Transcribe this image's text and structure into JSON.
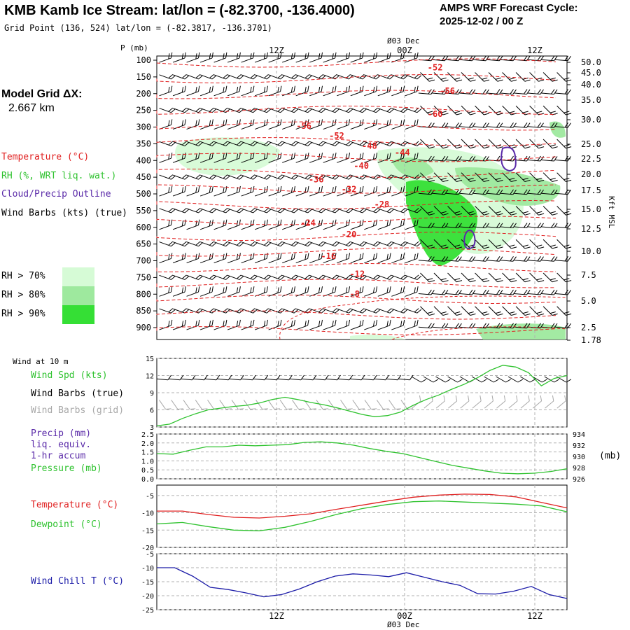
{
  "header": {
    "title": "KMB Kamb Ice Stream:  lat/lon = (-82.3700, -136.4000)",
    "grid_point": "Grid Point (136, 524) lat/lon = (-82.3817, -136.3701)",
    "cycle_label": "AMPS WRF Forecast Cycle:",
    "cycle_value": "2025-12-02 / 00  Z"
  },
  "left_panel": {
    "grid_dx_label": "Model Grid ΔX:",
    "grid_dx_value": "2.667 km",
    "legend": {
      "temperature": "Temperature (°C)",
      "rh": "RH (%, WRT liq. wat.)",
      "cloud": "Cloud/Precip Outline",
      "wind": "Wind Barbs (kts) (true)"
    },
    "rh_levels": [
      {
        "label": "RH > 70%",
        "color": "#d6fbd6"
      },
      {
        "label": "RH > 80%",
        "color": "#9ee99e"
      },
      {
        "label": "RH > 90%",
        "color": "#35df35"
      }
    ]
  },
  "colors": {
    "temperature": "#e02020",
    "rh_line": "#2ec22e",
    "cloud_outline": "#5a2aa8",
    "wind_chill": "#1c1ca8",
    "grid_barbs": "#a8a8a8",
    "gridline": "#b0b0b0"
  },
  "time_axis": {
    "top_date": "Ø03 Dec",
    "bottom_date": "Ø03 Dec",
    "ticks": [
      "12Z",
      "00Z",
      "12Z"
    ]
  },
  "chart_data": [
    {
      "type": "line",
      "panel": "upper-air cross section",
      "ylabel": "P (mb)",
      "y_ticks": [
        100,
        150,
        200,
        250,
        300,
        350,
        400,
        450,
        500,
        550,
        600,
        650,
        700,
        750,
        800,
        850,
        900
      ],
      "right_axis_label": "Kft MSL",
      "right_ticks": [
        "50.0",
        "45.0",
        "40.0",
        "35.0",
        "30.0",
        "25.0",
        "22.5",
        "20.0",
        "17.5",
        "15.0",
        "12.5",
        "10.0",
        "7.5",
        "5.0",
        "2.5",
        "1.78"
      ],
      "temperature_labels": [
        {
          "text": "-52",
          "t": 0.66,
          "p": 130
        },
        {
          "text": "-56",
          "t": 0.69,
          "p": 200
        },
        {
          "text": "-60",
          "t": 0.66,
          "p": 270
        },
        {
          "text": "-56",
          "t": 0.34,
          "p": 305
        },
        {
          "text": "-52",
          "t": 0.42,
          "p": 335
        },
        {
          "text": "-48",
          "t": 0.5,
          "p": 365
        },
        {
          "text": "-44",
          "t": 0.58,
          "p": 385
        },
        {
          "text": "-40",
          "t": 0.48,
          "p": 425
        },
        {
          "text": "-36",
          "t": 0.37,
          "p": 465
        },
        {
          "text": "-32",
          "t": 0.45,
          "p": 495
        },
        {
          "text": "-28",
          "t": 0.53,
          "p": 540
        },
        {
          "text": "-24",
          "t": 0.35,
          "p": 595
        },
        {
          "text": "-20",
          "t": 0.45,
          "p": 630
        },
        {
          "text": "-16",
          "t": 0.4,
          "p": 695
        },
        {
          "text": "-12",
          "t": 0.47,
          "p": 748
        },
        {
          "text": "-8",
          "t": 0.47,
          "p": 808
        }
      ]
    },
    {
      "type": "line",
      "panel": "wind",
      "section_label": "Wind at 10 m",
      "legend": [
        "Wind Spd (kts)",
        "Wind Barbs (true)",
        "Wind Barbs (grid)"
      ],
      "y_ticks": [
        3,
        6,
        9,
        12,
        15
      ],
      "ylim": [
        3,
        15
      ],
      "series": [
        {
          "name": "Wind Spd (kts)",
          "color": "#2ec22e",
          "values": [
            3.2,
            3.5,
            4.5,
            5.3,
            6,
            6.3,
            6.6,
            6.8,
            7.2,
            7.8,
            8.2,
            7.8,
            7.3,
            6.9,
            6.4,
            5.8,
            5.2,
            4.8,
            5,
            5.6,
            6.8,
            7.8,
            8.6,
            9.6,
            10.5,
            11.6,
            12.9,
            13.8,
            13.5,
            12.5,
            10.2,
            11.5,
            12
          ]
        }
      ]
    },
    {
      "type": "line",
      "panel": "precip / pressure",
      "legend": [
        "Precip (mm)",
        "liq. equiv.",
        "1-hr accum",
        "Pressure (mb)"
      ],
      "y_ticks": [
        "0.0",
        "0.5",
        "1.0",
        "1.5",
        "2.0",
        "2.5"
      ],
      "ylim": [
        0,
        2.5
      ],
      "y2_ticks": [
        926,
        928,
        930,
        932,
        934
      ],
      "y2_label": "(mb)",
      "y2lim": [
        926,
        934
      ],
      "series": [
        {
          "name": "Pressure (mb)",
          "color": "#2ec22e",
          "values": [
            930.5,
            930.4,
            931.1,
            931.7,
            931.7,
            932.0,
            931.9,
            932.0,
            932.1,
            932.5,
            932.6,
            932.4,
            932.0,
            931.4,
            930.9,
            930.5,
            929.8,
            929.1,
            928.4,
            927.9,
            927.4,
            927.0,
            926.9,
            927.0,
            927.3,
            927.8
          ]
        }
      ]
    },
    {
      "type": "line",
      "panel": "temperature / dewpoint",
      "legend": [
        "Temperature (°C)",
        "Dewpoint (°C)"
      ],
      "y_ticks": [
        -20,
        -15,
        -10,
        -5
      ],
      "ylim": [
        -20,
        -2
      ],
      "series": [
        {
          "name": "Temperature (°C)",
          "color": "#e02020",
          "values": [
            -9.5,
            -9.5,
            -10.5,
            -11.3,
            -11.5,
            -11.0,
            -10.3,
            -9.0,
            -7.8,
            -6.6,
            -5.5,
            -4.9,
            -4.6,
            -4.7,
            -5.4,
            -7.0,
            -8.6
          ]
        },
        {
          "name": "Dewpoint (°C)",
          "color": "#2ec22e",
          "values": [
            -13.2,
            -12.8,
            -14.0,
            -15.0,
            -15.2,
            -14.2,
            -12.5,
            -10.5,
            -8.8,
            -7.6,
            -6.8,
            -6.6,
            -6.9,
            -7.2,
            -7.5,
            -8.0,
            -9.7
          ]
        }
      ]
    },
    {
      "type": "line",
      "panel": "wind chill",
      "legend": [
        "Wind Chill T (°C)"
      ],
      "y_ticks": [
        -25,
        -20,
        -15,
        -10,
        -5
      ],
      "ylim": [
        -25,
        -5
      ],
      "series": [
        {
          "name": "Wind Chill T (°C)",
          "color": "#1c1ca8",
          "values": [
            -10,
            -10,
            -13,
            -17,
            -17.8,
            -19,
            -20.4,
            -19.6,
            -17.6,
            -15,
            -13,
            -12.2,
            -12.6,
            -13.2,
            -11.8,
            -13.4,
            -15,
            -16.3,
            -19.3,
            -19.4,
            -18.4,
            -16.7,
            -19.6,
            -21
          ]
        }
      ]
    }
  ]
}
